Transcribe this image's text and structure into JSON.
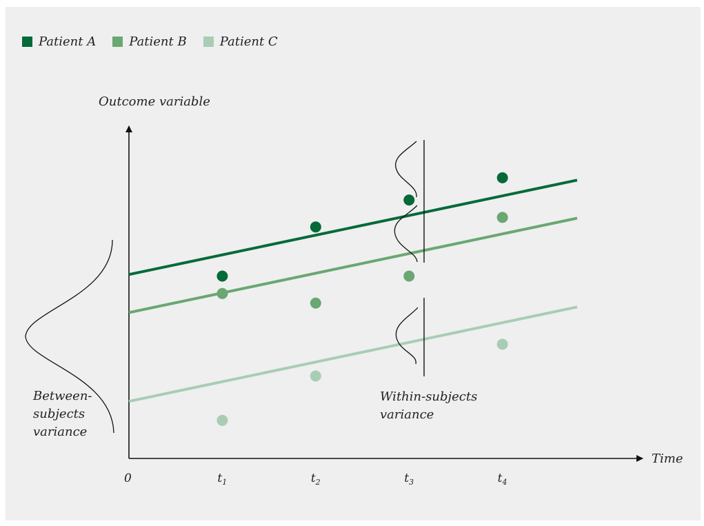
{
  "chart_data": {
    "type": "scatter",
    "title": "",
    "ylabel": "Outcome variable",
    "xlabel": "Time",
    "origin_label": "0",
    "x_ticks": [
      {
        "base": "t",
        "sub": "1",
        "x": 1
      },
      {
        "base": "t",
        "sub": "2",
        "x": 2
      },
      {
        "base": "t",
        "sub": "3",
        "x": 3
      },
      {
        "base": "t",
        "sub": "4",
        "x": 4
      }
    ],
    "legend_position": "top-left",
    "series": [
      {
        "name": "Patient A",
        "color": "#046a38",
        "points": [
          {
            "x": 1,
            "y": 5.75
          },
          {
            "x": 2,
            "y": 7.3
          },
          {
            "x": 3,
            "y": 8.15
          },
          {
            "x": 4,
            "y": 8.85
          }
        ],
        "trend": {
          "intercept": 5.8,
          "slope": 0.62
        }
      },
      {
        "name": "Patient B",
        "color": "#6aa773",
        "points": [
          {
            "x": 1,
            "y": 5.2
          },
          {
            "x": 2,
            "y": 4.9
          },
          {
            "x": 3,
            "y": 5.75
          },
          {
            "x": 4,
            "y": 7.6
          }
        ],
        "trend": {
          "intercept": 4.6,
          "slope": 0.62
        }
      },
      {
        "name": "Patient C",
        "color": "#a8cdb4",
        "points": [
          {
            "x": 1,
            "y": 1.2
          },
          {
            "x": 2,
            "y": 2.6
          },
          {
            "x": 4,
            "y": 3.6
          }
        ],
        "trend": {
          "intercept": 1.8,
          "slope": 0.62
        }
      }
    ],
    "annotations": {
      "between": {
        "lines": [
          "Between-",
          "subjects",
          "variance"
        ]
      },
      "within": {
        "lines": [
          "Within-subjects",
          "variance"
        ]
      }
    },
    "xlim": [
      0,
      4.8
    ],
    "ylim": [
      0,
      10
    ]
  }
}
